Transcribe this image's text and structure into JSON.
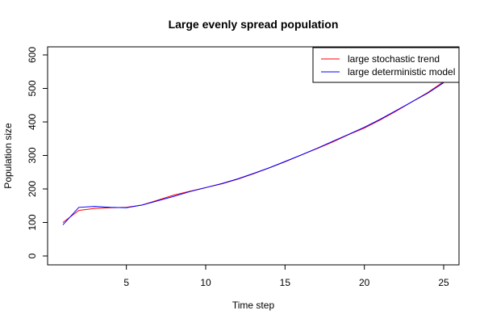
{
  "chart_data": {
    "type": "line",
    "title": "Large evenly spread population",
    "xlabel": "Time step",
    "ylabel": "Population size",
    "xlim": [
      1,
      25
    ],
    "ylim": [
      0,
      620
    ],
    "x_ticks": [
      5,
      10,
      15,
      20,
      25
    ],
    "y_ticks": [
      0,
      100,
      200,
      300,
      400,
      500,
      600
    ],
    "grid": false,
    "legend_position": "top-right",
    "x": [
      1,
      2,
      3,
      4,
      5,
      6,
      7,
      8,
      9,
      10,
      11,
      12,
      13,
      14,
      15,
      16,
      17,
      18,
      19,
      20,
      21,
      22,
      23,
      24,
      25
    ],
    "series": [
      {
        "name": "large stochastic trend",
        "color": "#ff0000",
        "values": [
          100,
          136,
          142,
          144,
          145,
          152,
          167,
          182,
          193,
          204,
          215,
          229,
          245,
          263,
          281,
          301,
          320,
          340,
          362,
          382,
          406,
          432,
          460,
          488,
          520
        ]
      },
      {
        "name": "large deterministic model",
        "color": "#0000ff",
        "values": [
          93,
          145,
          148,
          145,
          144,
          152,
          165,
          178,
          192,
          204,
          216,
          230,
          246,
          263,
          282,
          301,
          321,
          342,
          363,
          384,
          408,
          434,
          460,
          486,
          517
        ]
      }
    ]
  }
}
